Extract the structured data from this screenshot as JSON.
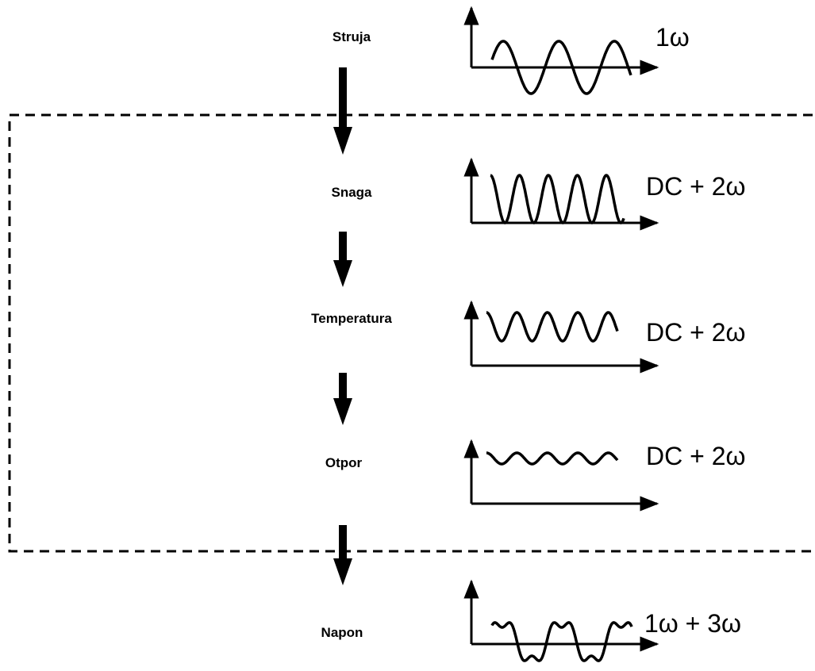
{
  "stages": [
    {
      "label": "Struja",
      "signal": "1ω"
    },
    {
      "label": "Snaga",
      "signal": "DC + 2ω"
    },
    {
      "label": "Temperatura",
      "signal": "DC + 2ω"
    },
    {
      "label": "Otpor",
      "signal": "DC + 2ω"
    },
    {
      "label": "Napon",
      "signal": "1ω + 3ω"
    }
  ]
}
